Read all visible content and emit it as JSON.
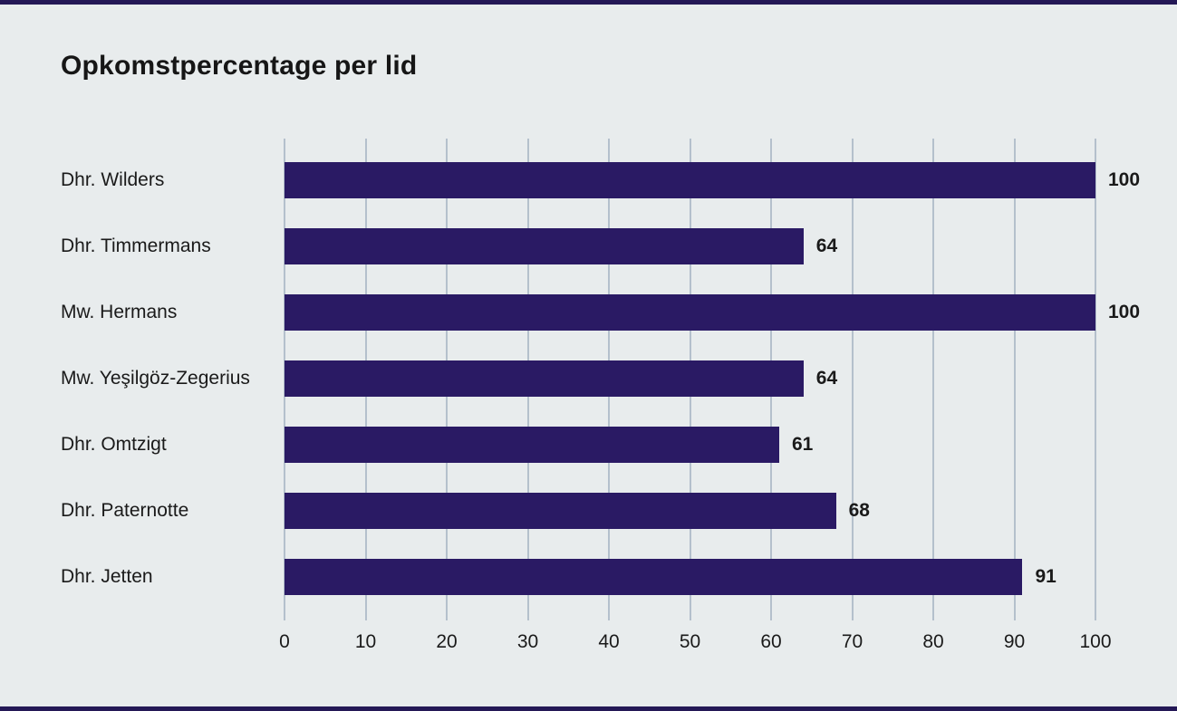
{
  "page": {
    "background_color": "#e8eced",
    "edge_strip_color": "#241856"
  },
  "chart_data": {
    "type": "bar",
    "orientation": "horizontal",
    "title": "Opkomstpercentage per lid",
    "categories": [
      "Dhr. Wilders",
      "Dhr. Timmermans",
      "Mw. Hermans",
      "Mw. Yeşilgöz-Zegerius",
      "Dhr. Omtzigt",
      "Dhr. Paternotte",
      "Dhr. Jetten"
    ],
    "values": [
      100,
      64,
      100,
      64,
      61,
      68,
      91
    ],
    "value_labels": [
      "100",
      "64",
      "100",
      "64",
      "61",
      "68",
      "91"
    ],
    "xlabel": "",
    "ylabel": "",
    "xlim": [
      0,
      100
    ],
    "xticks": [
      0,
      10,
      20,
      30,
      40,
      50,
      60,
      70,
      80,
      90,
      100
    ],
    "grid": "vertical",
    "legend": "none",
    "bar_color": "#2a1a64",
    "gridline_color": "#b4c0cc",
    "text_color": "#1a1a1a"
  }
}
